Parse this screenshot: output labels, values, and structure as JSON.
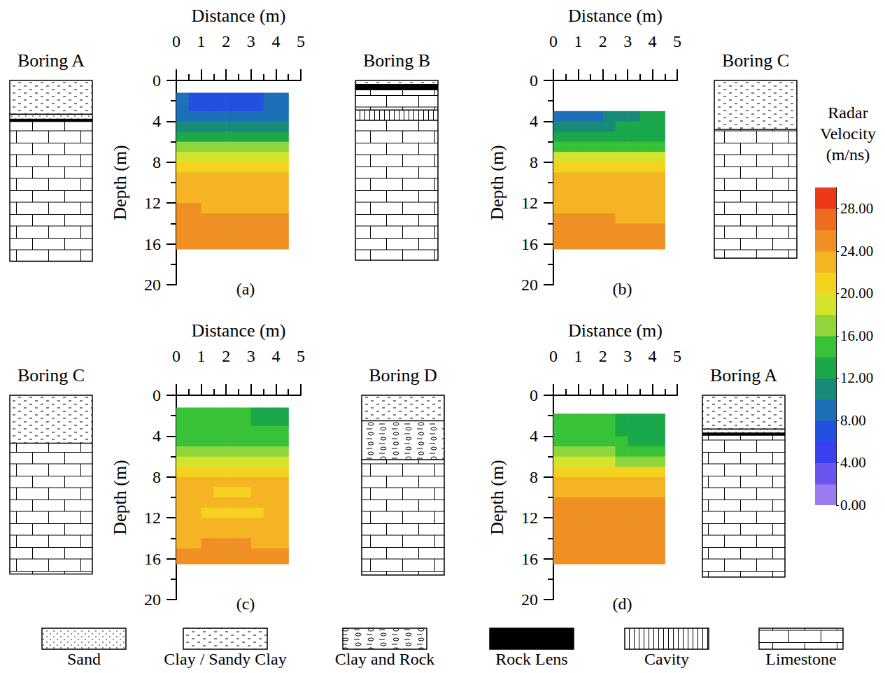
{
  "chart_data": [
    {
      "type": "heatmap",
      "caption": "(a)",
      "xlabel": "Distance (m)",
      "ylabel": "Depth (m)",
      "xlim": [
        0,
        5
      ],
      "xticks": [
        0,
        1,
        2,
        3,
        4,
        5
      ],
      "ylim": [
        0,
        20
      ],
      "yticks": [
        0,
        4,
        8,
        12,
        16,
        20
      ],
      "x_edges": [
        0,
        0.5,
        1,
        1.5,
        2,
        2.5,
        3,
        3.5,
        4,
        4.5
      ],
      "depth_edges": [
        1.2,
        2,
        3,
        4,
        5,
        6,
        7,
        8,
        9,
        10,
        11,
        12,
        13,
        14,
        15,
        16,
        16.5
      ],
      "cells": [
        [
          8,
          7.5,
          7,
          7,
          7,
          7.5,
          7.5,
          8,
          8.5
        ],
        [
          8,
          7.5,
          7,
          7,
          7,
          7.5,
          7.5,
          8,
          8.5
        ],
        [
          9,
          8.5,
          8.5,
          8,
          8.5,
          8.5,
          8.5,
          9,
          9
        ],
        [
          11,
          10.5,
          10.5,
          10.5,
          10.5,
          10.5,
          11,
          11,
          11
        ],
        [
          13,
          13,
          13,
          13,
          13,
          13,
          13,
          13,
          13
        ],
        [
          16,
          16,
          16,
          16,
          16,
          16,
          16,
          16,
          16
        ],
        [
          19,
          19,
          19,
          19,
          19,
          19,
          19,
          19,
          19
        ],
        [
          21,
          21,
          21.5,
          21.5,
          21.5,
          21.5,
          21,
          21,
          21
        ],
        [
          22.5,
          22.5,
          23,
          23.5,
          23.5,
          23,
          22.5,
          22.5,
          22.5
        ],
        [
          22.5,
          22.5,
          23,
          23.5,
          23,
          22.5,
          22.5,
          23,
          23
        ],
        [
          22.5,
          22.5,
          22.5,
          22.5,
          22.5,
          22.5,
          22.5,
          22.5,
          23
        ],
        [
          24,
          24,
          23.5,
          23,
          23,
          23,
          23,
          23.5,
          23.5
        ],
        [
          24.5,
          24.5,
          24,
          24,
          24,
          24,
          24,
          24,
          24
        ],
        [
          24.5,
          24.5,
          24.5,
          24.5,
          24.5,
          24.5,
          24.5,
          24.5,
          24.5
        ],
        [
          24.5,
          24.5,
          24.5,
          24.5,
          24.5,
          24.5,
          24.5,
          24.5,
          24.5
        ],
        [
          24.5,
          24.5,
          24.5,
          24.5,
          24.5,
          24.5,
          24.5,
          24.5,
          24.5
        ]
      ],
      "boring_left": {
        "name": "Boring A",
        "layers": [
          {
            "lithology": "Clay / Sandy Clay",
            "top": 0,
            "bottom": 3.3
          },
          {
            "lithology": "Sand",
            "top": 3.3,
            "bottom": 3.8
          },
          {
            "lithology": "Rock Lens",
            "top": 3.8,
            "bottom": 4.0
          },
          {
            "lithology": "Limestone",
            "top": 4.0,
            "bottom": 17.7
          }
        ]
      },
      "boring_right": {
        "name": "Boring B",
        "layers": [
          {
            "lithology": "Clay / Sandy Clay",
            "top": 0,
            "bottom": 0.4
          },
          {
            "lithology": "Rock Lens",
            "top": 0.4,
            "bottom": 0.9
          },
          {
            "lithology": "Limestone",
            "top": 0.9,
            "bottom": 2.9
          },
          {
            "lithology": "Cavity",
            "top": 2.9,
            "bottom": 3.9
          },
          {
            "lithology": "Limestone",
            "top": 3.9,
            "bottom": 17.6
          }
        ]
      }
    },
    {
      "type": "heatmap",
      "caption": "(b)",
      "xlabel": "Distance (m)",
      "ylabel": "Depth (m)",
      "xlim": [
        0,
        5
      ],
      "xticks": [
        0,
        1,
        2,
        3,
        4,
        5
      ],
      "ylim": [
        0,
        20
      ],
      "yticks": [
        0,
        4,
        8,
        12,
        16,
        20
      ],
      "x_edges": [
        0,
        0.5,
        1,
        1.5,
        2,
        2.5,
        3,
        3.5,
        4,
        4.5
      ],
      "depth_edges": [
        3,
        4,
        5,
        6,
        7,
        8,
        9,
        10,
        11,
        12,
        13,
        14,
        15,
        16,
        16.5
      ],
      "cells": [
        [
          9.5,
          9.5,
          9.5,
          9.5,
          10,
          11,
          11.5,
          12,
          12
        ],
        [
          10.5,
          10.5,
          10.5,
          11,
          11,
          12,
          12,
          12.5,
          12.5
        ],
        [
          12.5,
          12.5,
          12.5,
          12.5,
          13,
          13,
          13,
          13.5,
          13.5
        ],
        [
          15,
          15,
          15,
          15,
          15,
          15,
          15.5,
          15.5,
          15.5
        ],
        [
          18,
          18,
          18,
          18,
          18,
          18,
          18,
          18,
          18
        ],
        [
          21,
          21,
          21,
          21,
          21,
          21,
          21,
          21,
          21
        ],
        [
          22.5,
          22.5,
          23,
          23.5,
          23.5,
          23,
          22.5,
          22.5,
          22.5
        ],
        [
          23,
          23.5,
          23.5,
          23.5,
          23,
          23,
          23,
          23,
          23
        ],
        [
          23,
          23.5,
          23,
          23,
          23,
          23,
          23,
          23.5,
          23
        ],
        [
          23.5,
          23.5,
          23.5,
          23.5,
          23.5,
          23.5,
          23.5,
          23.5,
          23.5
        ],
        [
          24,
          24,
          24,
          24,
          24,
          23.5,
          23.5,
          23.5,
          23.5
        ],
        [
          24.5,
          24.5,
          24.5,
          24.5,
          24.5,
          24.5,
          24,
          24,
          24
        ],
        [
          25,
          25,
          25,
          25,
          25,
          25,
          24.5,
          24.5,
          24.5
        ],
        [
          25,
          25,
          25,
          25,
          25,
          25,
          25,
          25,
          25
        ]
      ],
      "boring_right": {
        "name": "Boring C",
        "layers": [
          {
            "lithology": "Clay / Sandy Clay",
            "top": 0,
            "bottom": 4.8
          },
          {
            "lithology": "Limestone",
            "top": 4.8,
            "bottom": 17.4
          }
        ]
      }
    },
    {
      "type": "heatmap",
      "caption": "(c)",
      "xlabel": "Distance (m)",
      "ylabel": "Depth (m)",
      "xlim": [
        0,
        5
      ],
      "xticks": [
        0,
        1,
        2,
        3,
        4,
        5
      ],
      "ylim": [
        0,
        20
      ],
      "yticks": [
        0,
        4,
        8,
        12,
        16,
        20
      ],
      "x_edges": [
        0,
        0.5,
        1,
        1.5,
        2,
        2.5,
        3,
        3.5,
        4,
        4.5
      ],
      "depth_edges": [
        1.2,
        2,
        3,
        4,
        5,
        6,
        7,
        8,
        9,
        10,
        11,
        12,
        13,
        14,
        15,
        16,
        16.5
      ],
      "cells": [
        [
          14.5,
          14.5,
          14.5,
          14.5,
          14,
          14,
          13.5,
          13.5,
          13.5
        ],
        [
          14.5,
          14.5,
          14.5,
          14.5,
          14,
          14,
          13.5,
          13.5,
          13.5
        ],
        [
          15,
          15,
          15,
          14.5,
          14.5,
          14.5,
          14,
          14,
          14
        ],
        [
          15.5,
          15.5,
          15.5,
          15.5,
          15,
          15,
          15,
          15,
          15
        ],
        [
          16.5,
          16.5,
          16.5,
          16.5,
          16.5,
          16.5,
          16,
          16,
          16
        ],
        [
          18,
          18,
          18,
          18,
          18,
          18,
          18,
          18,
          18
        ],
        [
          20.5,
          20.5,
          20.5,
          20.5,
          20.5,
          20.5,
          20.5,
          20.5,
          20.5
        ],
        [
          22.5,
          22.5,
          22.5,
          22,
          22,
          22,
          22.5,
          22.5,
          22.5
        ],
        [
          22.5,
          22.5,
          22,
          21.5,
          21.5,
          21.5,
          22,
          22.5,
          22.5
        ],
        [
          23,
          23,
          22.5,
          22.5,
          22.5,
          22.5,
          22.5,
          23,
          23
        ],
        [
          22.5,
          22,
          21,
          20.5,
          20.5,
          21,
          21.5,
          22,
          22.5
        ],
        [
          23,
          23,
          22.5,
          22,
          22,
          22.5,
          22.5,
          23,
          23
        ],
        [
          23.5,
          23.5,
          23.5,
          23.5,
          23.5,
          23.5,
          23.5,
          23.5,
          23.5
        ],
        [
          23.5,
          23.5,
          24,
          24,
          24,
          24,
          23.5,
          23.5,
          23.5
        ],
        [
          24,
          24,
          24.5,
          24.5,
          24.5,
          24.5,
          24,
          24,
          24
        ],
        [
          24.5,
          24.5,
          25,
          25,
          25,
          25,
          24.5,
          24.5,
          24.5
        ]
      ],
      "boring_left": {
        "name": "Boring C",
        "layers": [
          {
            "lithology": "Clay / Sandy Clay",
            "top": 0,
            "bottom": 4.7
          },
          {
            "lithology": "Limestone",
            "top": 4.7,
            "bottom": 17.5
          }
        ]
      },
      "boring_right": {
        "name": "Boring D",
        "layers": [
          {
            "lithology": "Clay / Sandy Clay",
            "top": 0,
            "bottom": 2.5
          },
          {
            "lithology": "Clay and Rock",
            "top": 2.5,
            "bottom": 6.3
          },
          {
            "lithology": "Limestone",
            "top": 6.3,
            "bottom": 17.6
          }
        ]
      }
    },
    {
      "type": "heatmap",
      "caption": "(d)",
      "xlabel": "Distance (m)",
      "ylabel": "Depth (m)",
      "xlim": [
        0,
        5
      ],
      "xticks": [
        0,
        1,
        2,
        3,
        4,
        5
      ],
      "ylim": [
        0,
        20
      ],
      "yticks": [
        0,
        4,
        8,
        12,
        16,
        20
      ],
      "x_edges": [
        0,
        0.5,
        1,
        1.5,
        2,
        2.5,
        3,
        3.5,
        4,
        4.5
      ],
      "depth_edges": [
        1.8,
        3,
        4,
        5,
        6,
        7,
        8,
        9,
        10,
        11,
        12,
        13,
        14,
        15,
        16,
        16.5
      ],
      "cells": [
        [
          15,
          15,
          14.5,
          14.5,
          14,
          13.5,
          13,
          12.5,
          12.5
        ],
        [
          15,
          15,
          15,
          14.5,
          14,
          13.5,
          13,
          12.5,
          12.5
        ],
        [
          15.5,
          15.5,
          15.5,
          15,
          14.5,
          14,
          13.5,
          13.5,
          13.5
        ],
        [
          16.5,
          16.5,
          16.5,
          16,
          16,
          15.5,
          15,
          15,
          15
        ],
        [
          18,
          18,
          18,
          18,
          18,
          17.5,
          17.5,
          17.5,
          17.5
        ],
        [
          20,
          20,
          20,
          20,
          20,
          20,
          20,
          20,
          20
        ],
        [
          22,
          22,
          22,
          22,
          22,
          22,
          22,
          22,
          22
        ],
        [
          23,
          23,
          23,
          23,
          23,
          23,
          23,
          23,
          23
        ],
        [
          24,
          24,
          24,
          24,
          24,
          24,
          24,
          24,
          24
        ],
        [
          24.5,
          24.5,
          24.5,
          24.5,
          24.5,
          24.5,
          24.5,
          24.5,
          24.5
        ],
        [
          24.5,
          24.5,
          24.5,
          24.5,
          24.5,
          24.5,
          24.5,
          24.5,
          24.5
        ],
        [
          24.5,
          24.5,
          24.5,
          24.5,
          24.5,
          24.5,
          24.5,
          25,
          25
        ],
        [
          24.5,
          24.5,
          24.5,
          24.5,
          24.5,
          24.5,
          25,
          25,
          25
        ],
        [
          24.5,
          24.5,
          24.5,
          24.5,
          24.5,
          24.5,
          24.5,
          24.5,
          24.5
        ],
        [
          24.5,
          24.5,
          24.5,
          24.5,
          24.5,
          24.5,
          24.5,
          24.5,
          24.5
        ]
      ],
      "boring_right": {
        "name": "Boring A",
        "layers": [
          {
            "lithology": "Clay / Sandy Clay",
            "top": 0,
            "bottom": 3.3
          },
          {
            "lithology": "Sand",
            "top": 3.3,
            "bottom": 3.7
          },
          {
            "lithology": "Rock Lens",
            "top": 3.7,
            "bottom": 3.9
          },
          {
            "lithology": "Limestone",
            "top": 3.9,
            "bottom": 17.8
          }
        ]
      }
    }
  ],
  "colorbar": {
    "title": "Radar Velocity (m/ns)",
    "range": [
      0,
      30
    ],
    "ticks": [
      {
        "value": 0,
        "label": "0.00"
      },
      {
        "value": 4,
        "label": "4.00"
      },
      {
        "value": 8,
        "label": "8.00"
      },
      {
        "value": 12,
        "label": "12.00"
      },
      {
        "value": 16,
        "label": "16.00"
      },
      {
        "value": 20,
        "label": "20.00"
      },
      {
        "value": 24,
        "label": "24.00"
      },
      {
        "value": 28,
        "label": "28.00"
      }
    ],
    "levels": [
      0,
      2,
      4,
      6,
      8,
      10,
      12,
      14,
      16,
      18,
      20,
      22,
      24,
      26,
      28,
      30
    ],
    "colors": [
      "#9b7cf0",
      "#6a55f0",
      "#3a3ff0",
      "#2450e0",
      "#1d6fb8",
      "#178a7a",
      "#1aa84a",
      "#38c238",
      "#8fd63c",
      "#d4e42c",
      "#f5d21e",
      "#f5b424",
      "#ef8f24",
      "#ee6c20",
      "#ec3a18"
    ]
  },
  "lithology_key": [
    "Sand",
    "Clay / Sandy Clay",
    "Clay and Rock",
    "Rock Lens",
    "Cavity",
    "Limestone"
  ]
}
